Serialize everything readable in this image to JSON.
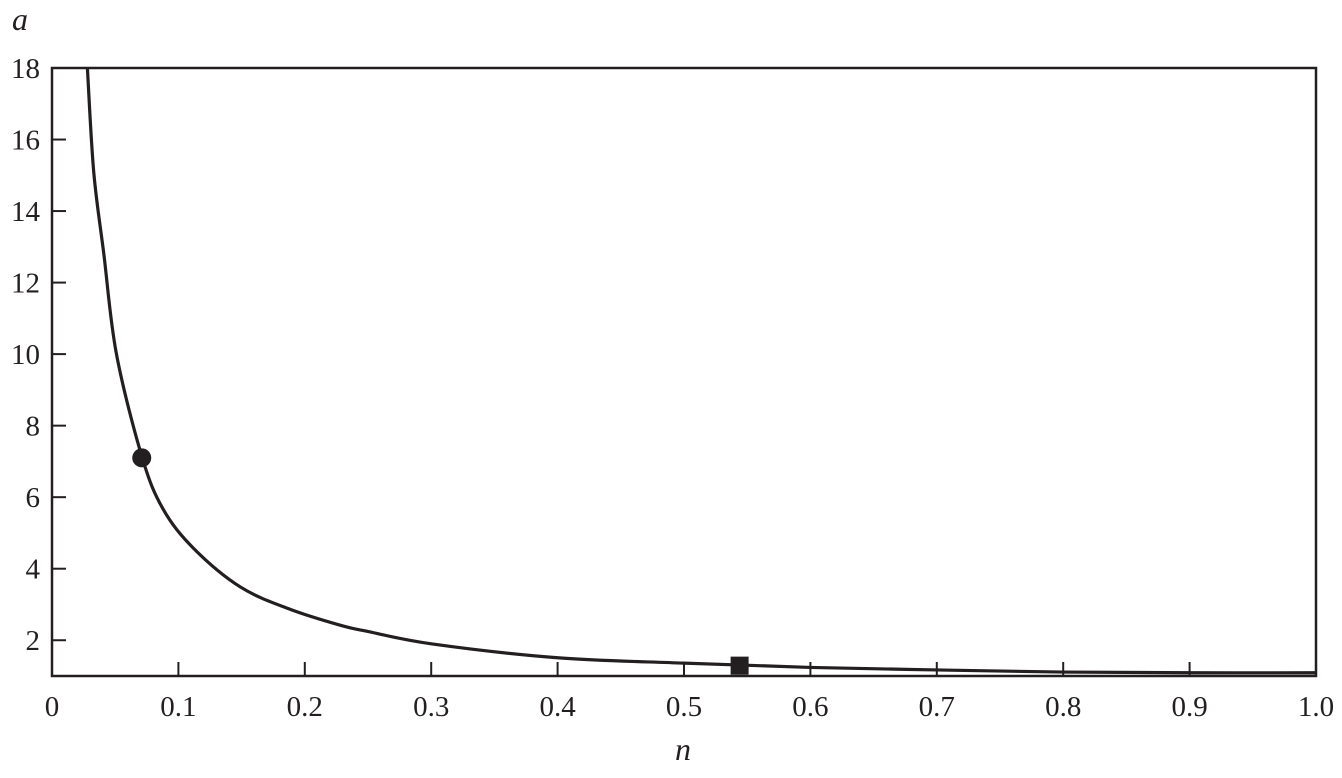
{
  "chart_data": {
    "type": "line",
    "title": "",
    "xlabel": "n",
    "ylabel": "a",
    "xlim": [
      0,
      1.0
    ],
    "ylim": [
      1,
      18
    ],
    "xticks": [
      "0",
      "0.1",
      "0.2",
      "0.3",
      "0.4",
      "0.5",
      "0.6",
      "0.7",
      "0.8",
      "0.9",
      "1.0"
    ],
    "yticks": [
      "2",
      "4",
      "6",
      "8",
      "10",
      "12",
      "14",
      "16",
      "18"
    ],
    "grid": false,
    "line_color": "#231f20",
    "series": [
      {
        "x": [
          0.028,
          0.033,
          0.041,
          0.051,
          0.0714,
          0.088,
          0.112,
          0.149,
          0.188,
          0.228,
          0.248,
          0.3,
          0.4,
          0.5,
          0.6,
          0.7,
          0.8,
          0.9,
          1.0
        ],
        "y": [
          18,
          15.1,
          12.8,
          10.0,
          7.1,
          5.66,
          4.57,
          3.49,
          2.87,
          2.42,
          2.26,
          1.9,
          1.51,
          1.36,
          1.24,
          1.17,
          1.11,
          1.09,
          1.09
        ]
      }
    ],
    "markers": [
      {
        "shape": "circle",
        "x": 0.071,
        "y": 7.1
      },
      {
        "shape": "square",
        "x": 0.544,
        "y": 1.29
      }
    ]
  }
}
